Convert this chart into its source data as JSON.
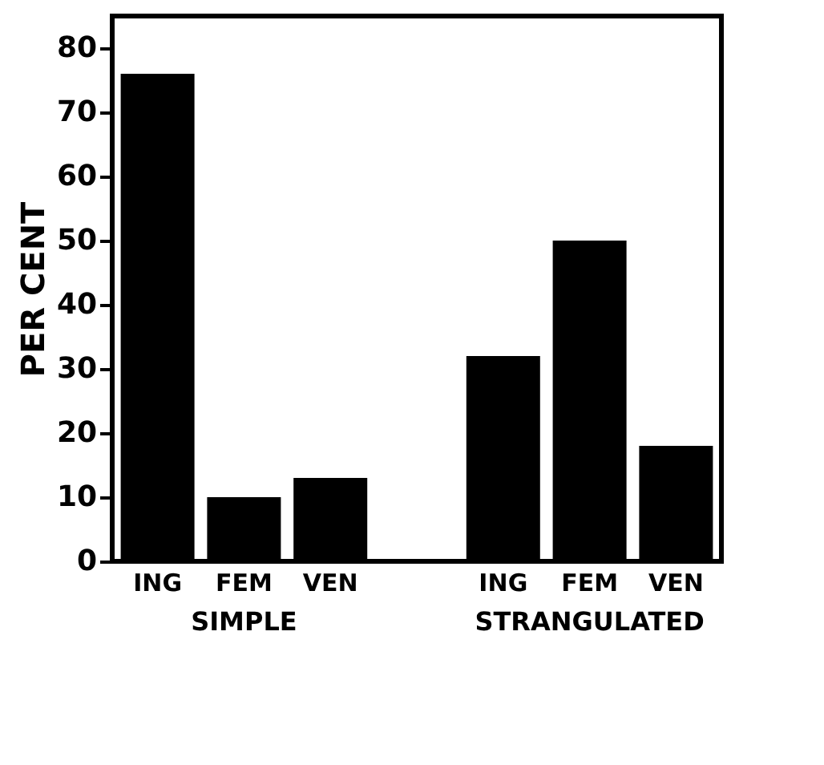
{
  "chart_data": {
    "type": "bar",
    "ylabel": "PER CENT",
    "categories": [
      "ING",
      "FEM",
      "VEN",
      "ING",
      "FEM",
      "VEN"
    ],
    "series": [
      {
        "color": "#000000",
        "values": [
          76,
          10,
          13,
          32,
          50,
          18
        ]
      }
    ],
    "annotations": [
      "SIMPLE",
      "STRANGULATED"
    ],
    "ylim": [
      0,
      85
    ],
    "yticks": [
      0,
      10,
      20,
      30,
      40,
      50,
      60,
      70,
      80
    ],
    "grid": false
  }
}
